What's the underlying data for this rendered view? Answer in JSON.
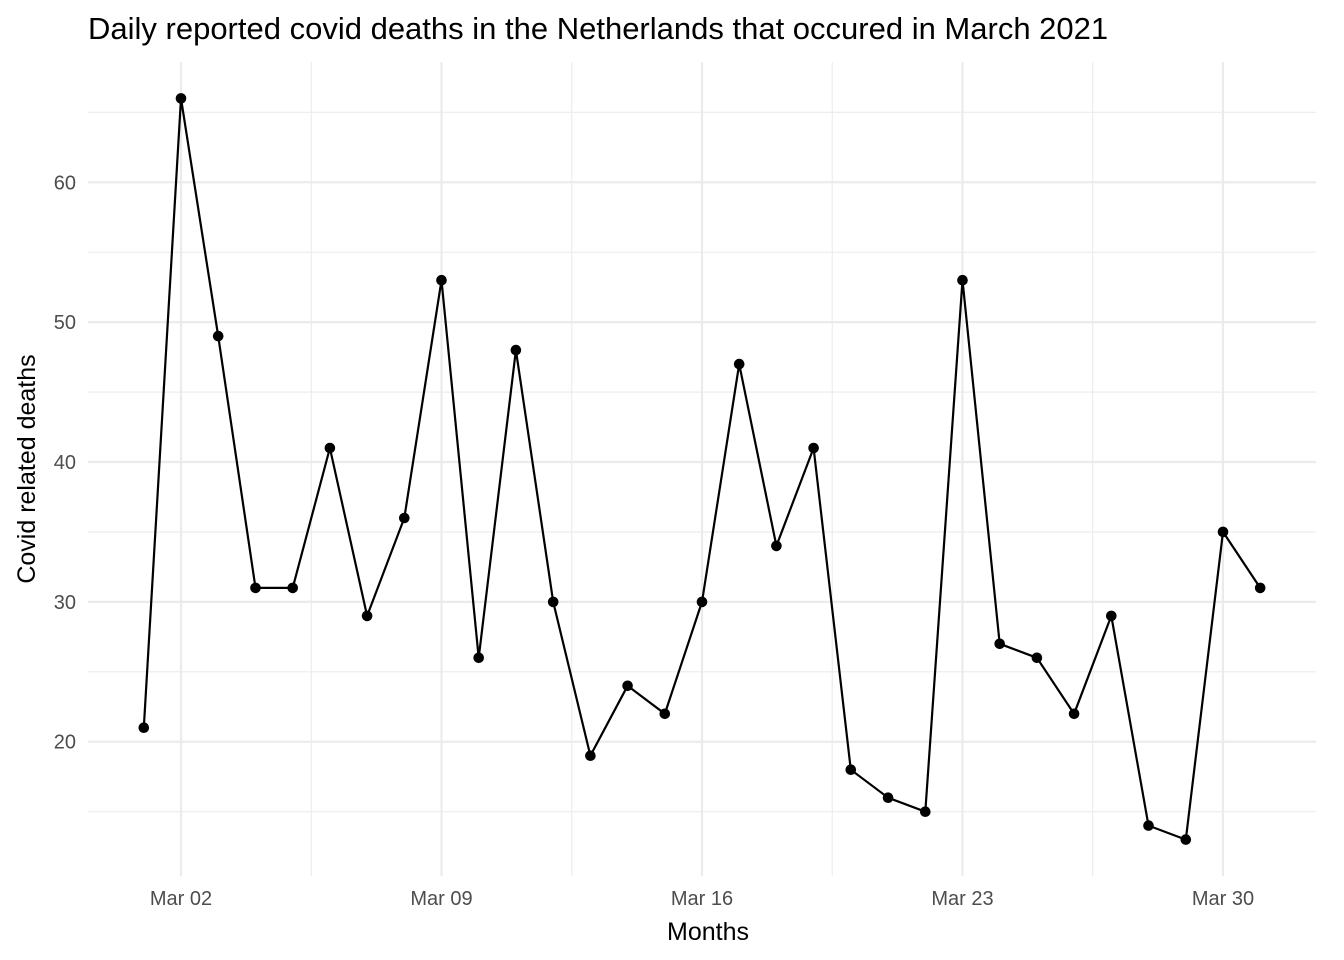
{
  "chart_data": {
    "type": "line",
    "title": "Daily reported covid deaths in the Netherlands that occured in March 2021",
    "xlabel": "Months",
    "ylabel": "Covid related deaths",
    "x_start": "2021-03-01",
    "x_end": "2021-03-31",
    "x": [
      "2021-03-01",
      "2021-03-02",
      "2021-03-03",
      "2021-03-04",
      "2021-03-05",
      "2021-03-06",
      "2021-03-07",
      "2021-03-08",
      "2021-03-09",
      "2021-03-10",
      "2021-03-11",
      "2021-03-12",
      "2021-03-13",
      "2021-03-14",
      "2021-03-15",
      "2021-03-16",
      "2021-03-17",
      "2021-03-18",
      "2021-03-19",
      "2021-03-20",
      "2021-03-21",
      "2021-03-22",
      "2021-03-23",
      "2021-03-24",
      "2021-03-25",
      "2021-03-26",
      "2021-03-27",
      "2021-03-28",
      "2021-03-29",
      "2021-03-30",
      "2021-03-31"
    ],
    "values": [
      21,
      66,
      49,
      31,
      31,
      41,
      29,
      36,
      53,
      26,
      48,
      30,
      19,
      24,
      22,
      30,
      47,
      34,
      41,
      18,
      16,
      15,
      53,
      27,
      26,
      22,
      29,
      14,
      13,
      35,
      31
    ],
    "ylim": [
      10.4,
      68.6
    ],
    "y_ticks": [
      20,
      30,
      40,
      50,
      60
    ],
    "y_minor_ticks": [
      15,
      25,
      35,
      45,
      55,
      65
    ],
    "x_ticks": [
      {
        "date": "2021-03-02",
        "label": "Mar 02"
      },
      {
        "date": "2021-03-09",
        "label": "Mar 09"
      },
      {
        "date": "2021-03-16",
        "label": "Mar 16"
      },
      {
        "date": "2021-03-23",
        "label": "Mar 23"
      },
      {
        "date": "2021-03-30",
        "label": "Mar 30"
      }
    ],
    "x_minor_ticks": [
      "2021-03-05T12:00",
      "2021-03-12T12:00",
      "2021-03-19T12:00",
      "2021-03-26T12:00"
    ],
    "grid": true,
    "legend": "none",
    "color": "#000000"
  }
}
